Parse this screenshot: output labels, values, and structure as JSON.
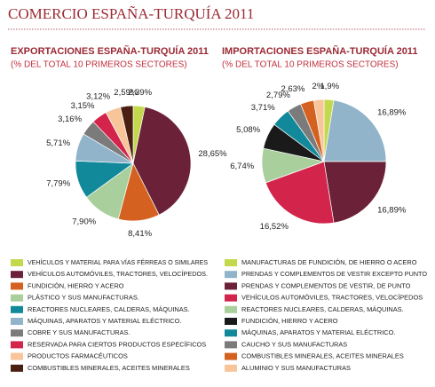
{
  "title": "COMERCIO ESPAÑA-TURQUÍA 2011",
  "chart_data": [
    {
      "type": "pie",
      "title": "EXPORTACIONES ESPAÑA-TURQUÍA 2011",
      "subtitle": "(% DEL TOTAL 10 PRIMEROS SECTORES)",
      "categories": [
        "VEHÍCULOS Y MATERIAL PARA VÍAS FÉRREAS O SIMILARES",
        "VEHÍCULOS AUTOMÓVILES, TRACTORES, VELOCÍPEDOS.",
        "FUNDICIÓN, HIERRO Y ACERO",
        "PLÁSTICO Y SUS MANUFACTURAS.",
        "REACTORES NUCLEARES, CALDERAS, MÁQUINAS.",
        "MÁQUINAS, APARATOS Y MATERIAL ELÉCTRICO.",
        "COBRE Y SUS MANUFACTURAS.",
        "RESERVADA PARA CIERTOS PRODUCTOS ESPECÍFICOS",
        "PRODUCTOS FARMACÉUTICOS",
        "COMBUSTIBLES MINERALES, ACEITES MINERALES"
      ],
      "values": [
        2.39,
        28.65,
        8.41,
        7.9,
        7.79,
        5.71,
        3.16,
        3.15,
        3.12,
        2.59
      ],
      "value_labels": [
        "2,39%",
        "28,65%",
        "8,41%",
        "7,90%",
        "7,79%",
        "5,71%",
        "3,16%",
        "3,15%",
        "3,12%",
        "2,59%"
      ],
      "colors": [
        "#c3d84c",
        "#6b2238",
        "#d4611f",
        "#a9cf9d",
        "#12899a",
        "#91b4ca",
        "#7b7b7b",
        "#d3254c",
        "#f8c59b",
        "#4a1e10"
      ]
    },
    {
      "type": "pie",
      "title": "IMPORTACIONES ESPAÑA-TURQUÍA 2011",
      "subtitle": "(% DEL TOTAL 10 PRIMEROS SECTORES)",
      "categories": [
        "MANUFACTURAS DE FUNDICIÓN, DE HIERRO O ACERO",
        "PRENDAS Y COMPLEMENTOS DE VESTIR EXCEPTO PUNTO",
        "PRENDAS Y COMPLEMENTOS DE VESTIR, DE PUNTO",
        "VEHÍCULOS AUTOMÓVILES, TRACTORES, VELOCÍPEDOS",
        "REACTORES NUCLEARES, CALDERAS, MÁQUINAS.",
        "FUNDICIÓN, HIERRO Y ACERO",
        "MÁQUINAS, APARATOS Y MATERIAL ELÉCTRICO.",
        "CAUCHO Y SUS MANUFACTURAS",
        "COMBUSTIBLES MINERALES, ACEITES MINERALES",
        "ALUMINIO Y SUS MANUFACTURAS"
      ],
      "values": [
        1.9,
        16.89,
        16.89,
        16.52,
        6.74,
        5.08,
        3.71,
        2.79,
        2.63,
        2
      ],
      "value_labels": [
        "1,9%",
        "16,89%",
        "16,89%",
        "16,52%",
        "6,74%",
        "5,08%",
        "3,71%",
        "2,79%",
        "2,63%",
        "2%"
      ],
      "colors": [
        "#c3d84c",
        "#91b4ca",
        "#6b2238",
        "#d3254c",
        "#a9cf9d",
        "#1a1a1a",
        "#12899a",
        "#7b7b7b",
        "#d4611f",
        "#f8c59b"
      ]
    }
  ]
}
